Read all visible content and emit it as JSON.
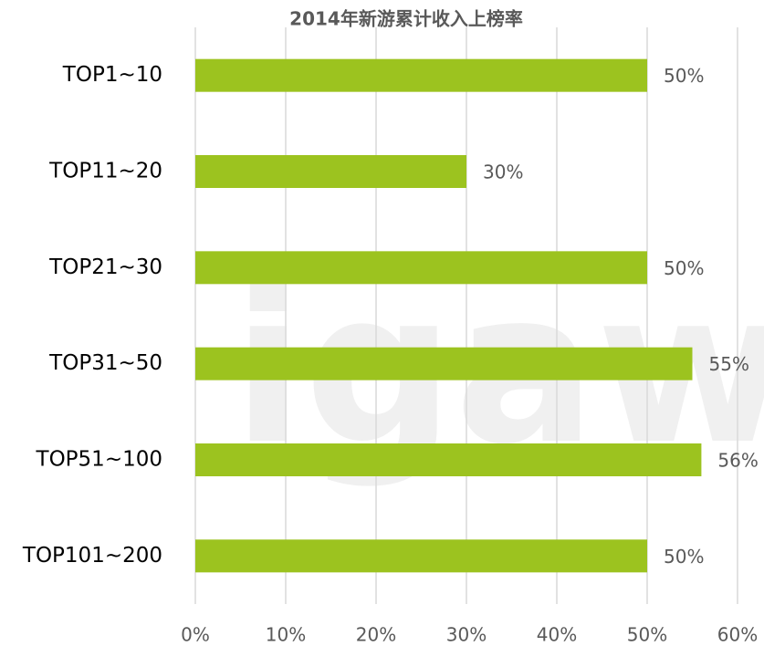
{
  "chart_data": {
    "type": "bar",
    "orientation": "horizontal",
    "title": "2014年新游累计收入上榜率",
    "watermark": "igaw",
    "categories": [
      "TOP1~10",
      "TOP11~20",
      "TOP21~30",
      "TOP31~50",
      "TOP51~100",
      "TOP101~200"
    ],
    "values": [
      50,
      30,
      50,
      55,
      56,
      50
    ],
    "value_labels": [
      "50%",
      "30%",
      "50%",
      "55%",
      "56%",
      "50%"
    ],
    "color": "#9cc31f",
    "xlim": [
      0,
      60
    ],
    "xticks": [
      {
        "value": 0,
        "label": "0%"
      },
      {
        "value": 10,
        "label": "10%"
      },
      {
        "value": 20,
        "label": "20%"
      },
      {
        "value": 30,
        "label": "30%"
      },
      {
        "value": 40,
        "label": "40%"
      },
      {
        "value": 50,
        "label": "50%"
      },
      {
        "value": 60,
        "label": "60%"
      }
    ],
    "grid": true
  }
}
